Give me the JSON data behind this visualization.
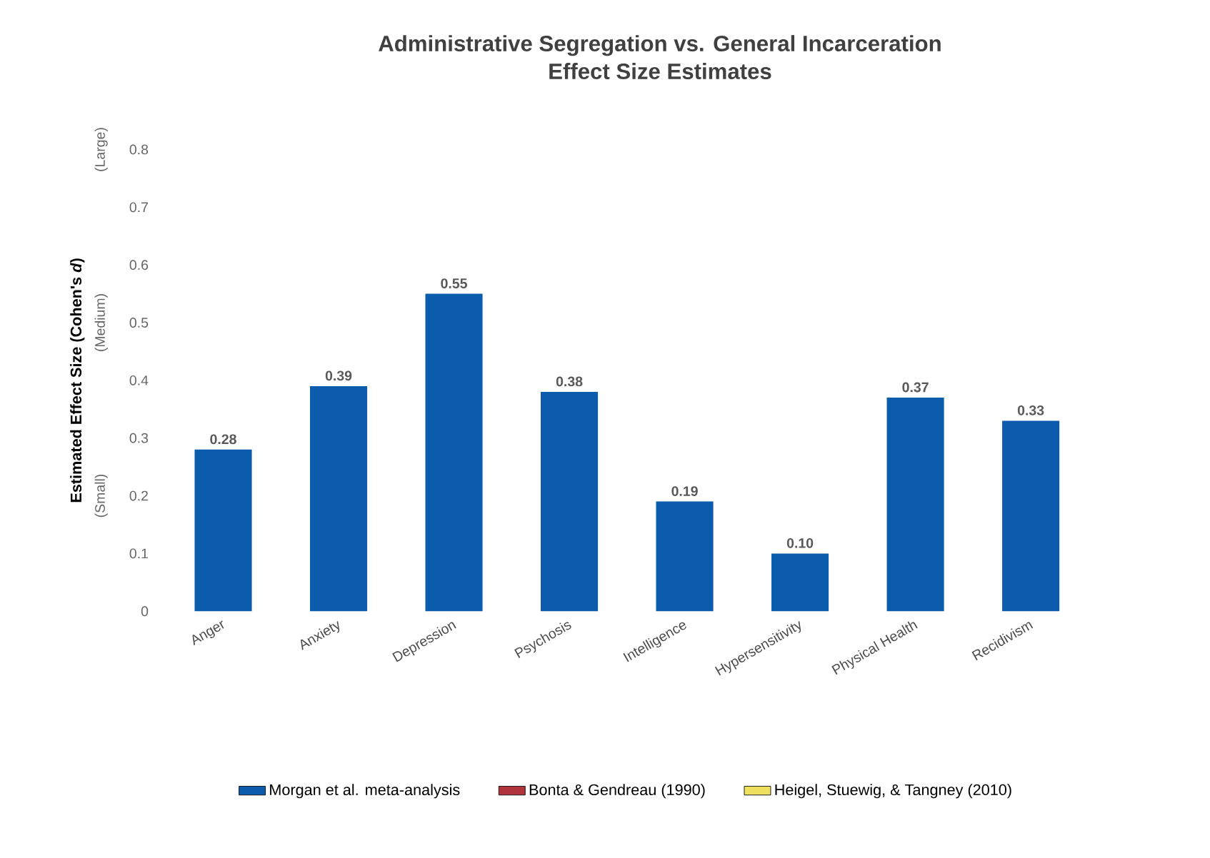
{
  "chart_data": {
    "type": "bar",
    "title": "Administrative Segregation vs. General Incarceration",
    "subtitle": "Effect Size Estimates",
    "ylabel": "Estimated Effect Size (Cohen's *d*)",
    "categories": [
      "Anger",
      "Anxiety",
      "Depression",
      "Psychosis",
      "Intelligence",
      "Hypersensitivity",
      "Physical Health",
      "Recidivism"
    ],
    "series": [
      {
        "name": "Morgan et al. meta-analysis",
        "color": "#0b5cad",
        "values": [
          0.28,
          0.39,
          0.55,
          0.38,
          0.19,
          0.1,
          0.37,
          0.33
        ],
        "value_labels": [
          "0.28",
          "0.39",
          "0.55",
          "0.38",
          "0.19",
          "0.10",
          "0.37",
          "0.33"
        ]
      },
      {
        "name": "Bonta & Gendreau (1990)",
        "color": "#b0343c",
        "values": [
          null,
          null,
          null,
          null,
          null,
          null,
          null,
          null
        ]
      },
      {
        "name": "Heigel, Stuewig, & Tangney (2010)",
        "color": "#f0e060",
        "values": [
          null,
          null,
          null,
          null,
          null,
          null,
          null,
          null
        ]
      }
    ],
    "ylim": [
      0,
      0.8
    ],
    "yticks": [
      0,
      0.1,
      0.2,
      0.3,
      0.4,
      0.5,
      0.6,
      0.7,
      0.8
    ],
    "annotations": [
      "(Small)",
      "(Medium)",
      "(Large)"
    ],
    "legend": "bottom"
  }
}
